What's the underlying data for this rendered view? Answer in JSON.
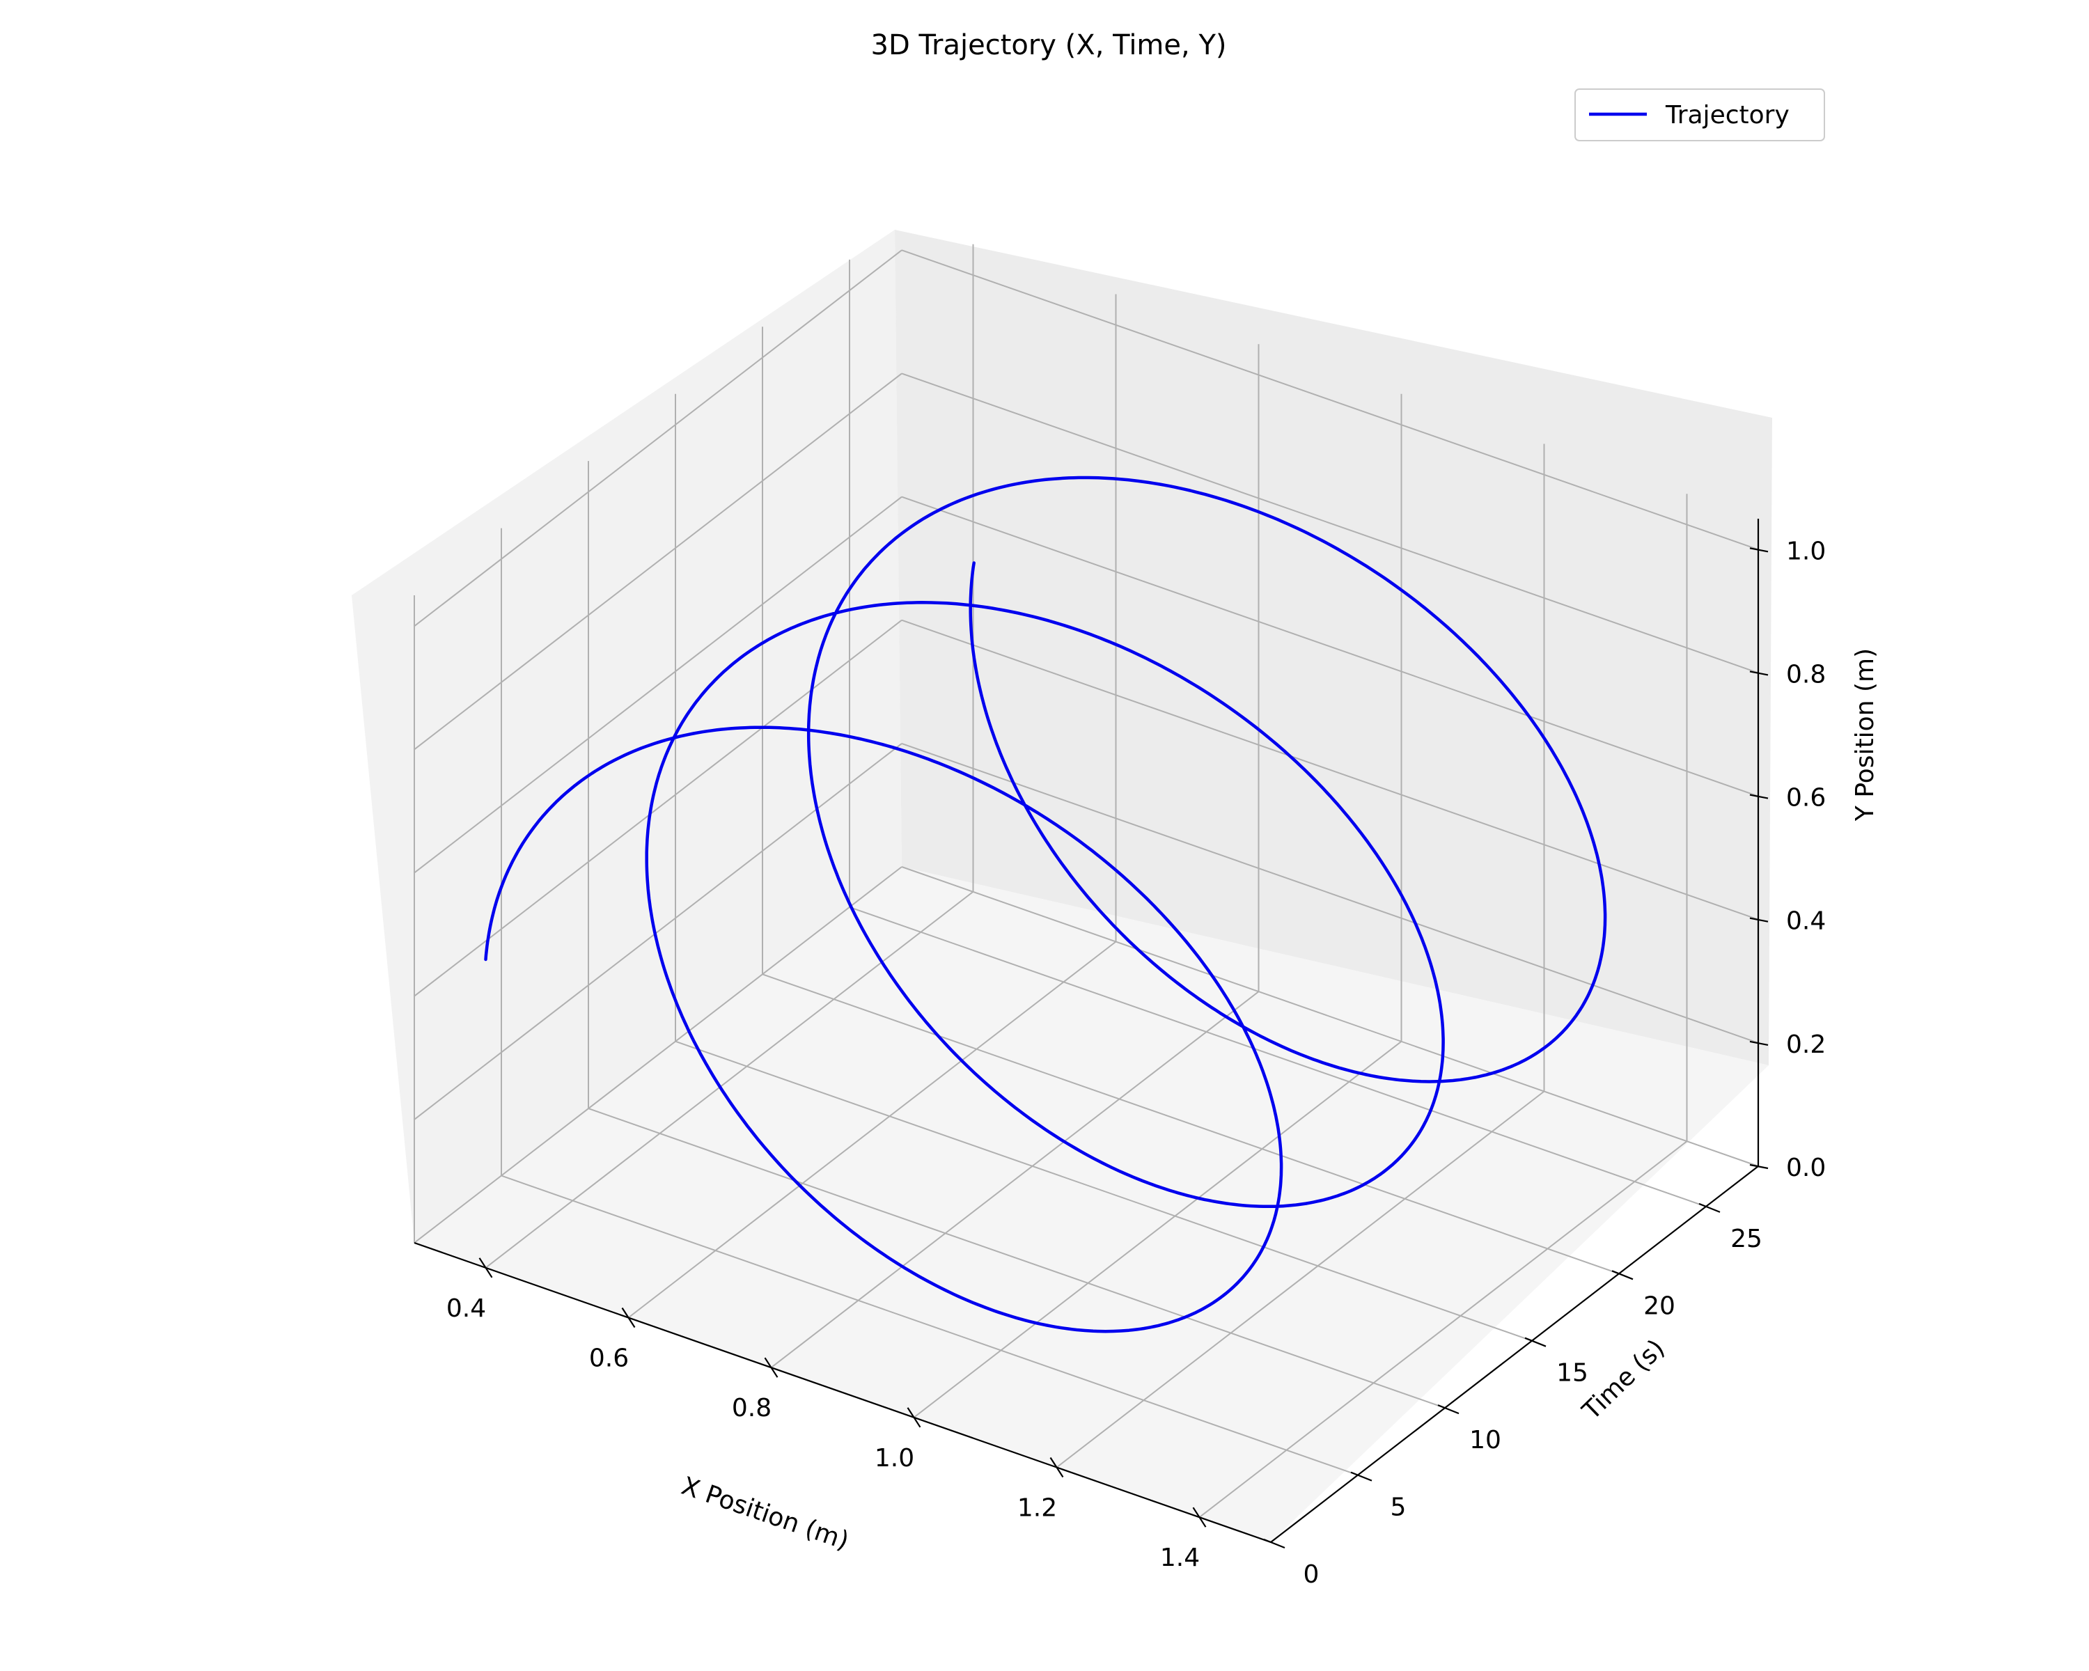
{
  "chart_data": {
    "type": "line",
    "projection": "3d",
    "title": "3D Trajectory (X, Time, Y)",
    "xlabel": "X Position (m)",
    "tlabel": "Time (s)",
    "ylabel": "Y Position (m)",
    "x_ticks": [
      "0.4",
      "0.6",
      "0.8",
      "1.0",
      "1.2",
      "1.4"
    ],
    "t_ticks": [
      "0",
      "5",
      "10",
      "15",
      "20",
      "25"
    ],
    "y_ticks": [
      "0.0",
      "0.2",
      "0.4",
      "0.6",
      "0.8",
      "1.0"
    ],
    "xlim": [
      0.3,
      1.5
    ],
    "tlim": [
      0,
      28
    ],
    "ylim": [
      0.0,
      1.05
    ],
    "grid": true,
    "legend": {
      "position": "top-right",
      "entries": [
        "Trajectory"
      ]
    },
    "series": [
      {
        "name": "Trajectory",
        "color": "#0000ee",
        "description": "Helix: x = 0.9 - 0.5*cos(2*pi*t/9.3), y = 0.5 + 0.5*sin(2*pi*t/9.3); approx. 3 turns from t=0 to t=28",
        "x_center": 0.9,
        "x_amplitude": 0.5,
        "y_center": 0.5,
        "y_amplitude": 0.5,
        "period_s": 9.3,
        "t_start": 0,
        "t_end": 28
      }
    ]
  }
}
